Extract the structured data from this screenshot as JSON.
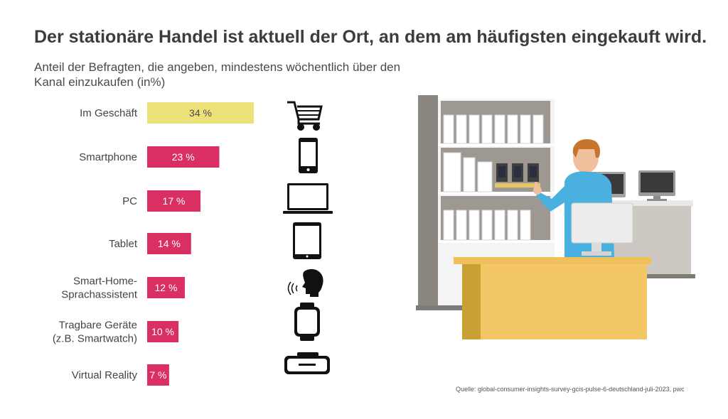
{
  "title": "Der stationäre Handel ist aktuell der Ort, an dem am häufigsten eingekauft wird.",
  "subtitle": "Anteil der Befragten, die angeben, mindestens wöchentlich über den Kanal einzukaufen (in%)",
  "source": "Quelle: global-consumer-insights-survey-gcis-pulse-6-deutschland-juli-2023, pwc",
  "chart_data": {
    "type": "bar",
    "orientation": "horizontal",
    "categories": [
      [
        "Im Geschäft"
      ],
      [
        "Smartphone"
      ],
      [
        "PC"
      ],
      [
        "Tablet"
      ],
      [
        "Smart-Home-",
        "Sprachassistent"
      ],
      [
        "Tragbare Geräte",
        "(z.B. Smartwatch)"
      ],
      [
        "Virtual Reality"
      ]
    ],
    "values": [
      34,
      23,
      17,
      14,
      12,
      10,
      7
    ],
    "value_labels": [
      "34 %",
      "23 %",
      "17 %",
      "14 %",
      "12 %",
      "10 %",
      "7 %"
    ],
    "colors": [
      "#ede27a",
      "#d92f62",
      "#d92f62",
      "#d92f62",
      "#d92f62",
      "#d92f62",
      "#d92f62"
    ],
    "icons": [
      "shopping-cart-icon",
      "smartphone-icon",
      "laptop-icon",
      "tablet-icon",
      "voice-assistant-icon",
      "smartwatch-icon",
      "vr-headset-icon"
    ],
    "grid": false,
    "legend": "none"
  }
}
